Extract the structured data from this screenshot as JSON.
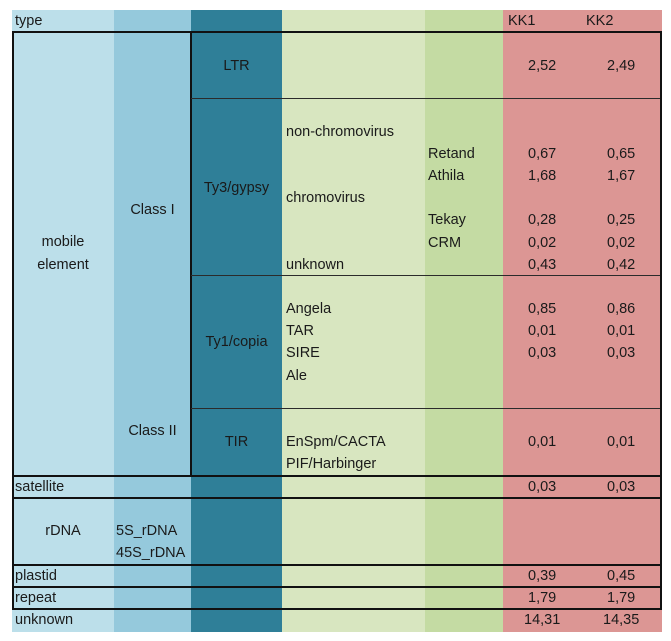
{
  "header": {
    "type": "type",
    "kk1": "KK1",
    "kk2": "KK2"
  },
  "col1": {
    "mobile_line1": "mobile",
    "mobile_line2": "element",
    "satellite": "satellite",
    "rdna": "rDNA",
    "plastid": "plastid",
    "repeat": "repeat",
    "unknown": "unknown"
  },
  "col2": {
    "class1": "Class I",
    "class2": "Class II",
    "rdna_5s": "5S_rDNA",
    "rdna_45s": "45S_rDNA"
  },
  "col3": {
    "ltr": "LTR",
    "ty3": "Ty3/gypsy",
    "ty1": "Ty1/copia",
    "tir": "TIR"
  },
  "col4": {
    "nonchromo": "non-chromovirus",
    "chromo": "chromovirus",
    "unknown": "unknown",
    "angela": "Angela",
    "tar": "TAR",
    "sire": "SIRE",
    "ale": "Ale",
    "enspm": "EnSpm/CACTA",
    "pif": "PIF/Harbinger"
  },
  "col5": {
    "retand": "Retand",
    "athila": "Athila",
    "tekay": "Tekay",
    "crm": "CRM"
  },
  "values": {
    "ltr": [
      "2,52",
      "2,49"
    ],
    "retand": [
      "0,67",
      "0,65"
    ],
    "athila": [
      "1,68",
      "1,67"
    ],
    "tekay": [
      "0,28",
      "0,25"
    ],
    "crm": [
      "0,02",
      "0,02"
    ],
    "ty3_unknown": [
      "0,43",
      "0,42"
    ],
    "angela": [
      "0,85",
      "0,86"
    ],
    "tar": [
      "0,01",
      "0,01"
    ],
    "sire": [
      "0,03",
      "0,03"
    ],
    "tir": [
      "0,01",
      "0,01"
    ],
    "satellite": [
      "0,03",
      "0,03"
    ],
    "plastid": [
      "0,39",
      "0,45"
    ],
    "repeat": [
      "1,79",
      "1,79"
    ],
    "unknown": [
      "14,31",
      "14,35"
    ]
  },
  "colors": {
    "c1": "#bcdfea",
    "c2": "#95c9dc",
    "c3": "#2f7f98",
    "c4": "#d8e6c0",
    "c5": "#c4dba3",
    "c6": "#dc9694"
  }
}
